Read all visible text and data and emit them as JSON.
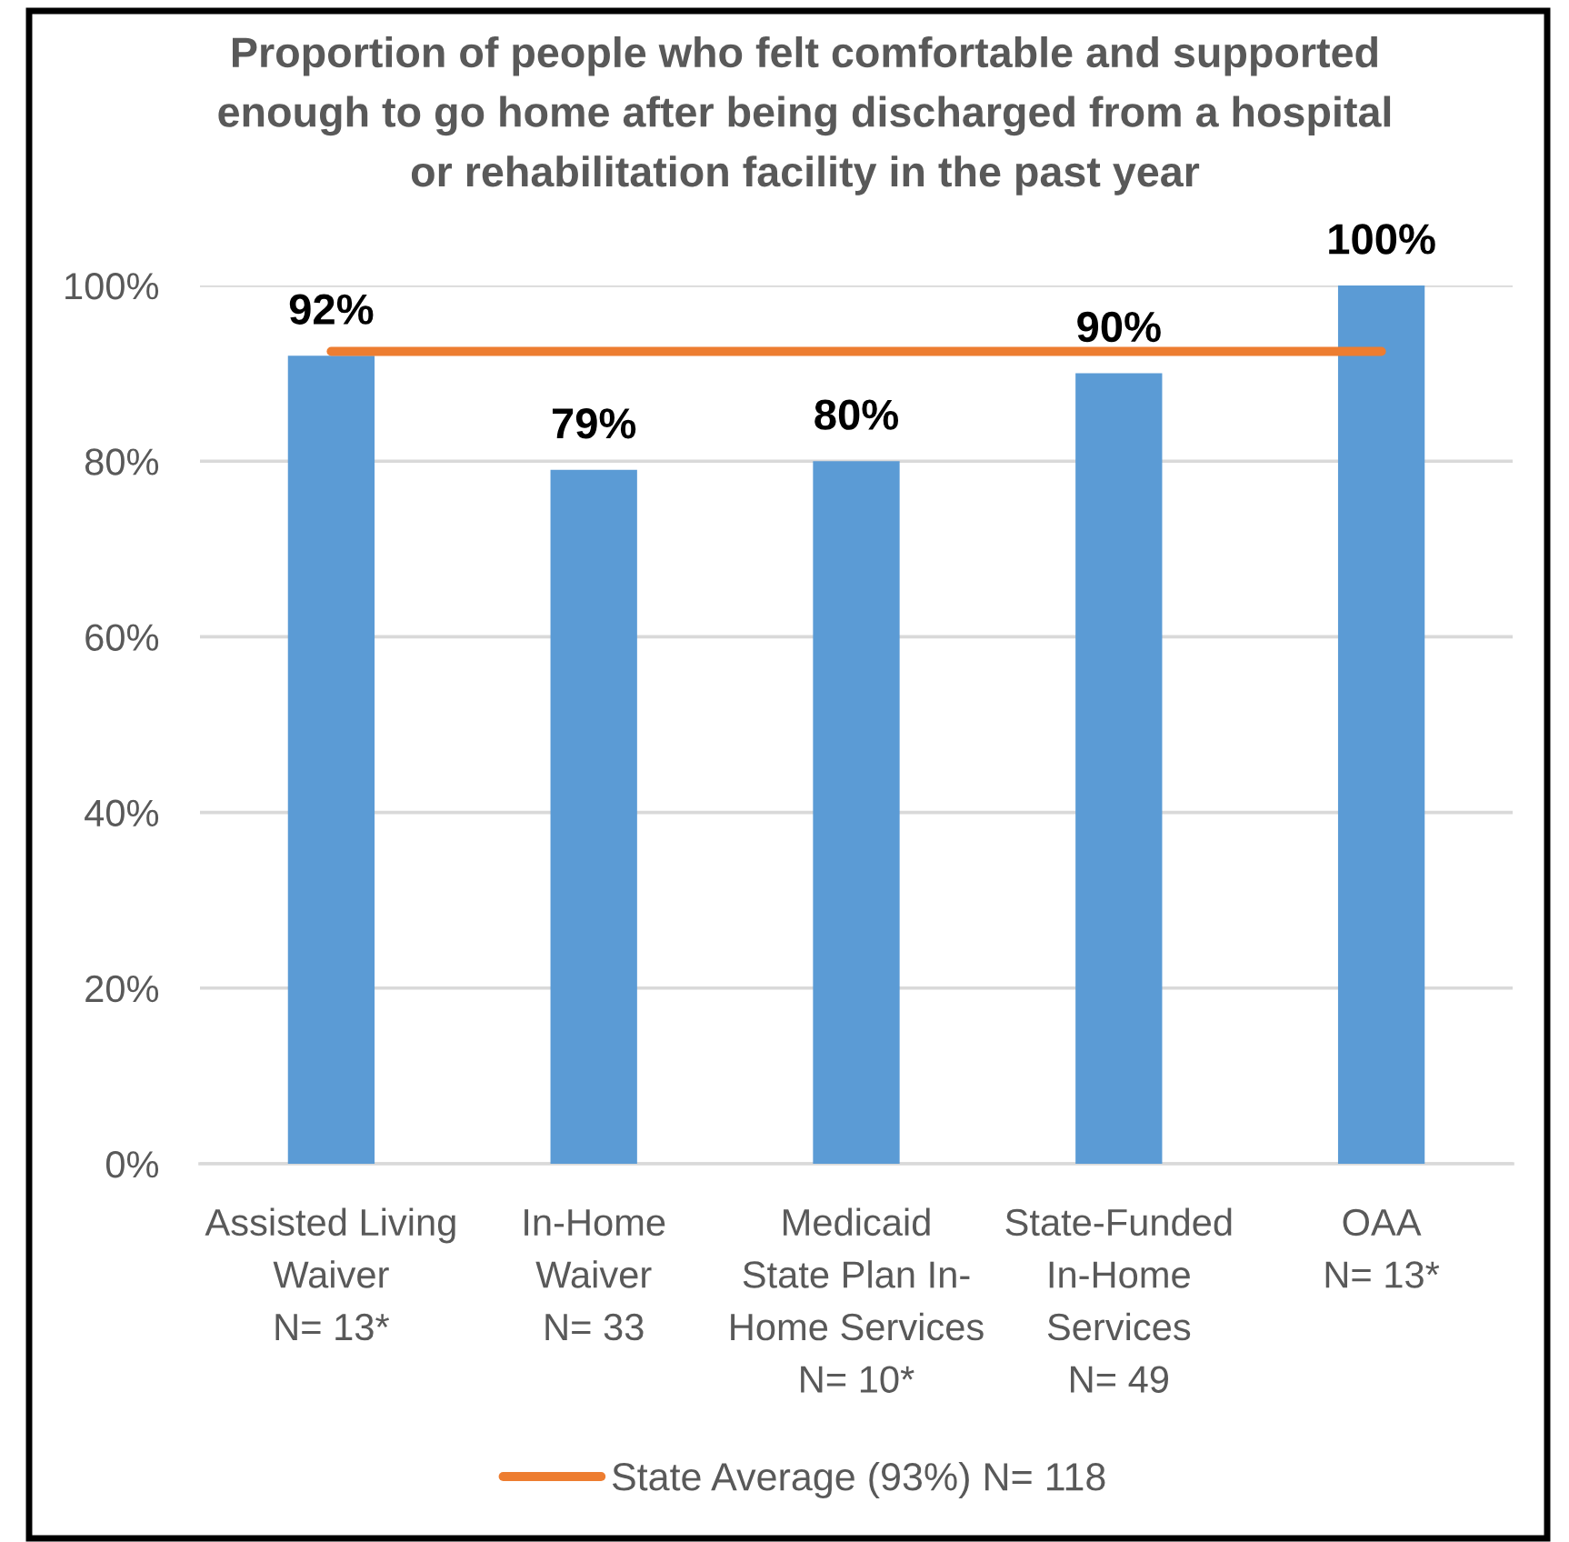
{
  "chart_data": {
    "type": "bar",
    "title": "Proportion of people who felt comfortable and supported\nenough to go home after being discharged from a hospital\nor rehabilitation facility in the past year",
    "categories": [
      "Assisted Living\nWaiver\nN= 13*",
      "In-Home\nWaiver\nN= 33",
      "Medicaid\nState Plan In-\nHome Services\nN= 10*",
      "State-Funded\nIn-Home\nServices\nN= 49",
      "OAA\nN= 13*"
    ],
    "series": [
      {
        "color": "#5b9bd5",
        "values": [
          92,
          79,
          80,
          90,
          100
        ],
        "value_labels": [
          "92%",
          "79%",
          "80%",
          "90%",
          "100%"
        ]
      },
      {
        "type": "line",
        "name": "State Average (93%) N= 118",
        "color": "#ed7d31",
        "values": [
          92.5,
          92.5,
          92.5,
          92.5,
          92.5
        ]
      }
    ],
    "ylim": [
      0,
      100
    ],
    "yticks": [
      {
        "value": 0,
        "label": "0%"
      },
      {
        "value": 20,
        "label": "20%"
      },
      {
        "value": 40,
        "label": "40%"
      },
      {
        "value": 60,
        "label": "60%"
      },
      {
        "value": 80,
        "label": "80%"
      },
      {
        "value": 100,
        "label": "100%"
      }
    ],
    "grid": "y",
    "legend": "bottom"
  }
}
